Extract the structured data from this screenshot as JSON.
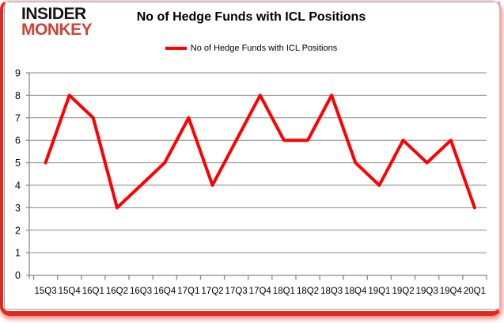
{
  "logo": {
    "line1": "INSIDER",
    "line2": "MONKEY",
    "line1_color": "#141414",
    "line2_color": "#cd4433"
  },
  "header": {
    "title": "No of Hedge Funds with ICL Positions"
  },
  "legend": {
    "label": "No of Hedge Funds with ICL Positions",
    "line_color": "#ff0000"
  },
  "chart_data": {
    "type": "line",
    "title": "No of Hedge Funds with ICL Positions",
    "series_name": "No of Hedge Funds with ICL Positions",
    "categories": [
      "15Q3",
      "15Q4",
      "16Q1",
      "16Q2",
      "16Q3",
      "16Q4",
      "17Q1",
      "17Q2",
      "17Q3",
      "17Q4",
      "18Q1",
      "18Q2",
      "18Q3",
      "18Q4",
      "19Q1",
      "19Q2",
      "19Q3",
      "19Q4",
      "20Q1"
    ],
    "values": [
      5,
      8,
      7,
      3,
      4,
      5,
      7,
      4,
      6,
      8,
      6,
      6,
      8,
      5,
      4,
      6,
      5,
      6,
      3
    ],
    "xlabel": "",
    "ylabel": "",
    "ylim": [
      0,
      9
    ],
    "ytick_interval": 1,
    "grid": true,
    "legend_position": "top-center",
    "line_color": "#ff0000",
    "line_width": 4,
    "gridline_color": "#8a8a8a",
    "axis_color": "#8a8a8a",
    "tick_label_color": "#000000"
  },
  "frame": {
    "border_red": "#e5271d",
    "inner_border_gray": "#9f9f9f"
  }
}
